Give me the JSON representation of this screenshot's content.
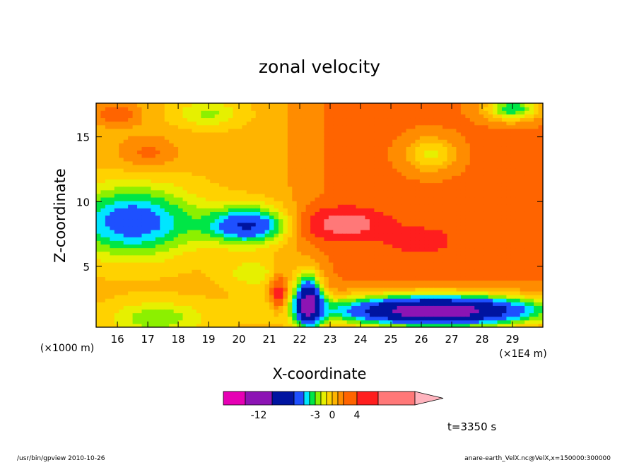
{
  "chart_data": {
    "type": "heatmap",
    "title": "zonal velocity",
    "xlabel": "X-coordinate",
    "ylabel": "Z-coordinate",
    "x_unit_left": "(×1000 m)",
    "x_unit_right": "(×1E4 m)",
    "xlim": [
      15.3,
      30.0
    ],
    "ylim": [
      0.3,
      17.6
    ],
    "x_ticks": [
      16,
      17,
      18,
      19,
      20,
      21,
      22,
      23,
      24,
      25,
      26,
      27,
      28,
      29
    ],
    "y_ticks": [
      5,
      10,
      15
    ],
    "time_label": "t=3350 s",
    "colorbar": {
      "tick_labels": [
        {
          "label": "-12",
          "value": -12
        },
        {
          "label": "-3",
          "value": -3
        },
        {
          "label": "0",
          "value": 0
        },
        {
          "label": "4",
          "value": 4
        }
      ],
      "levels": [
        {
          "low": -16,
          "high": -14,
          "color": "#e600b4"
        },
        {
          "low": -14,
          "high": -10,
          "color": "#8c14b4"
        },
        {
          "low": -10,
          "high": -7,
          "color": "#0014a0"
        },
        {
          "low": -7,
          "high": -5,
          "color": "#1e50ff"
        },
        {
          "low": -5,
          "high": -4,
          "color": "#00e6ff"
        },
        {
          "low": -4,
          "high": -3,
          "color": "#00e646"
        },
        {
          "low": -3,
          "high": -2,
          "color": "#8cf000"
        },
        {
          "low": -2,
          "high": -1,
          "color": "#e6f000"
        },
        {
          "low": -1,
          "high": 0,
          "color": "#ffd200"
        },
        {
          "low": 0,
          "high": 1,
          "color": "#ffb400"
        },
        {
          "low": 1,
          "high": 2,
          "color": "#ff8c00"
        },
        {
          "low": 2,
          "high": 4,
          "color": "#ff6400"
        },
        {
          "low": 4,
          "high": 7,
          "color": "#ff1e1e"
        },
        {
          "low": 7,
          "high": 10,
          "color": "#ff7878"
        },
        {
          "low": 10,
          "high": 13,
          "color": "#ffb4be"
        }
      ]
    },
    "features": [
      {
        "kind": "jet-core",
        "x": 23.5,
        "z": 8.3,
        "u": 8
      },
      {
        "kind": "jet-core",
        "x": 26.0,
        "z": 7.0,
        "u": 5
      },
      {
        "kind": "easterly-low",
        "x": 25.5,
        "z": 1.5,
        "u": -12
      },
      {
        "kind": "easterly-column",
        "x": 22.2,
        "z": 2.5,
        "u": -12
      },
      {
        "kind": "easterly-band",
        "x": 16.5,
        "z": 9.0,
        "u": -6
      },
      {
        "kind": "easterly-band",
        "x": 20.5,
        "z": 8.0,
        "u": -7
      },
      {
        "kind": "warm-patch",
        "x": 17.0,
        "z": 13.8,
        "u": 2
      }
    ]
  },
  "footer": {
    "left": "/usr/bin/gpview   2010-10-26",
    "right": "anare-earth_VelX.nc@VelX,x=150000:300000"
  }
}
